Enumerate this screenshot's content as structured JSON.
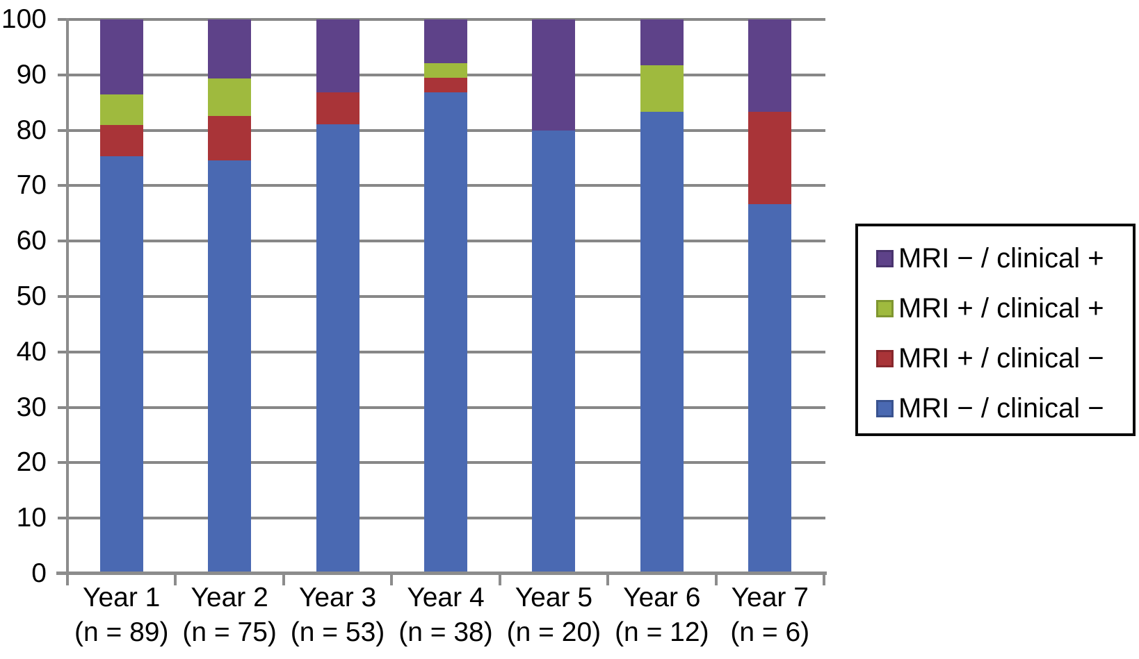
{
  "chart_data": {
    "type": "bar",
    "stacked": true,
    "stack_order": "bottom-to-top",
    "grid": true,
    "colors": {
      "blue": "#4a69b2",
      "red": "#a93438",
      "green": "#9fba3e",
      "purple": "#5e4289",
      "gridline": "#878787",
      "axis": "#8c8c8c"
    },
    "y_axis": {
      "min": 0,
      "max": 100,
      "tick_interval": 10,
      "ticks": [
        0,
        10,
        20,
        30,
        40,
        50,
        60,
        70,
        80,
        90,
        100
      ],
      "tick_labels": [
        "0",
        "10",
        "20",
        "30",
        "40",
        "50",
        "60",
        "70",
        "80",
        "90",
        "100"
      ]
    },
    "categories": [
      {
        "label": "Year 1",
        "sublabel": "(n = 89)",
        "n": 89
      },
      {
        "label": "Year 2",
        "sublabel": "(n = 75)",
        "n": 75
      },
      {
        "label": "Year 3",
        "sublabel": "(n = 53)",
        "n": 53
      },
      {
        "label": "Year 4",
        "sublabel": "(n = 38)",
        "n": 38
      },
      {
        "label": "Year 5",
        "sublabel": "(n = 20)",
        "n": 20
      },
      {
        "label": "Year 6",
        "sublabel": "(n = 12)",
        "n": 12
      },
      {
        "label": "Year 7",
        "sublabel": "(n = 6)",
        "n": 6
      }
    ],
    "series": [
      {
        "name": "MRI − / clinical −",
        "color": "#4a69b2",
        "values": [
          75.3,
          74.7,
          81.1,
          86.8,
          80.0,
          83.3,
          66.7
        ]
      },
      {
        "name": "MRI + / clinical −",
        "color": "#a93438",
        "values": [
          5.6,
          8.0,
          5.7,
          2.6,
          0,
          0,
          16.7
        ]
      },
      {
        "name": "MRI + / clinical +",
        "color": "#9fba3e",
        "values": [
          5.6,
          6.7,
          0,
          2.6,
          0,
          8.3,
          0
        ]
      },
      {
        "name": "MRI − / clinical +",
        "color": "#5e4289",
        "values": [
          13.5,
          10.7,
          13.2,
          7.9,
          20.0,
          8.3,
          16.7
        ]
      }
    ],
    "legend": {
      "position": "right",
      "entries": [
        {
          "label": "MRI − / clinical +",
          "color": "#5e4289",
          "border": "#49336e"
        },
        {
          "label": "MRI + / clinical +",
          "color": "#9fba3e",
          "border": "#7f9630"
        },
        {
          "label": "MRI + / clinical −",
          "color": "#a93438",
          "border": "#87272c"
        },
        {
          "label": "MRI − / clinical −",
          "color": "#4a69b2",
          "border": "#3a538f"
        }
      ]
    }
  }
}
